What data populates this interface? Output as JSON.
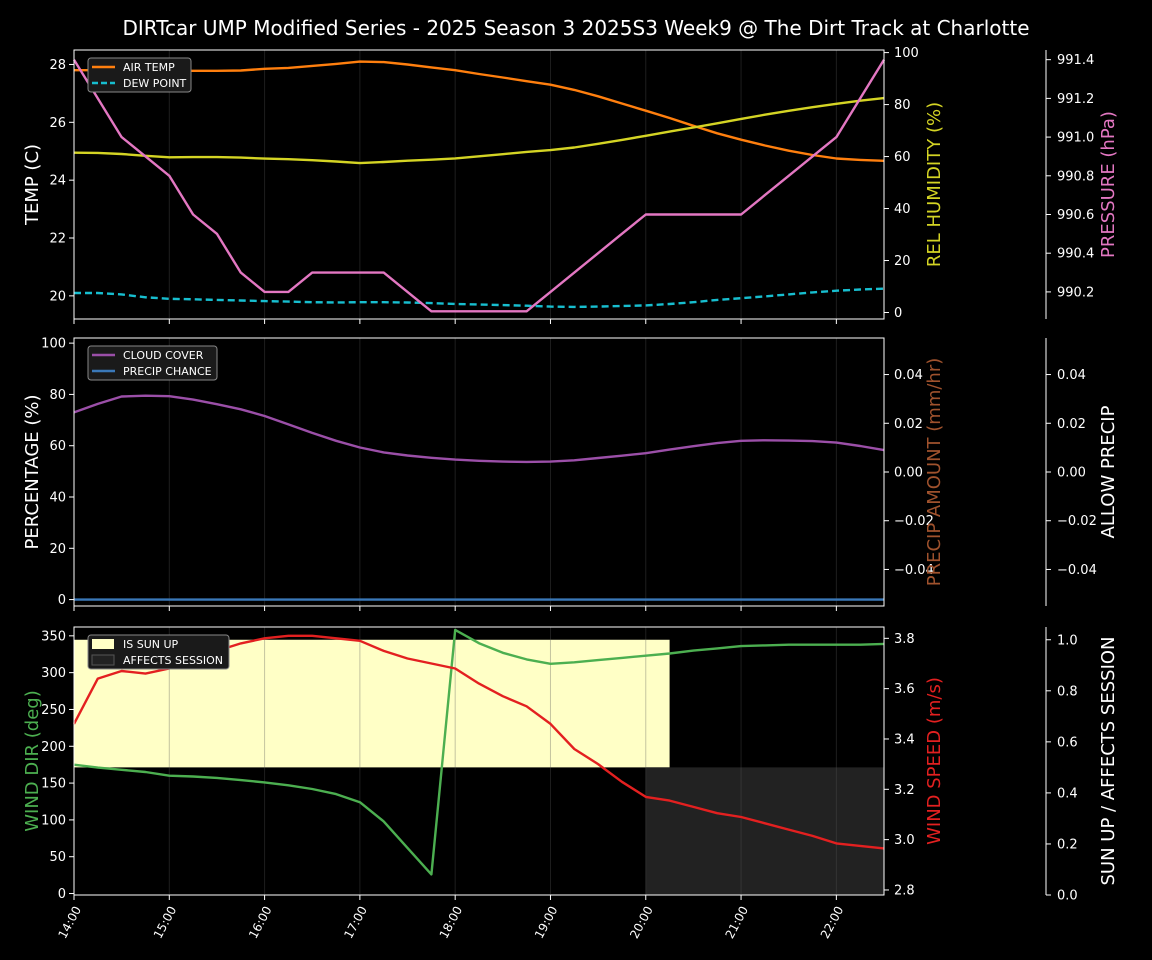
{
  "title": "DIRTcar UMP Modified Series - 2025 Season 3 2025S3 Week9 @ The Dirt Track at Charlotte",
  "colors": {
    "background": "#000000",
    "axis": "#ffffff",
    "air_temp": "#ff7f0e",
    "dew_point": "#17becf",
    "humidity": "#d4d424",
    "pressure": "#e377c2",
    "cloud": "#9b4fa8",
    "precip_chance": "#3a78b8",
    "precip_amount_label": "#a0522d",
    "wind_dir": "#4caf50",
    "wind_speed": "#e32020",
    "sun_up": "#ffffc6",
    "affects": "#222222"
  },
  "chart_data": [
    {
      "type": "line",
      "panel": "temperature",
      "title": "DIRTcar UMP Modified Series - 2025 Season 3 2025S3 Week9 @ The Dirt Track at Charlotte",
      "x": [
        14.0,
        14.25,
        14.5,
        14.75,
        15.0,
        15.25,
        15.5,
        15.75,
        16.0,
        16.25,
        16.5,
        16.75,
        17.0,
        17.25,
        17.5,
        17.75,
        18.0,
        18.25,
        18.5,
        18.75,
        19.0,
        19.25,
        19.5,
        19.75,
        20.0,
        20.25,
        20.5,
        20.75,
        21.0,
        21.25,
        21.5,
        21.75,
        22.0,
        22.25,
        22.5
      ],
      "xlim": [
        14.0,
        22.5
      ],
      "x_tick_labels": [
        "14:00",
        "15:00",
        "16:00",
        "17:00",
        "18:00",
        "19:00",
        "20:00",
        "21:00",
        "22:00"
      ],
      "left_axis": {
        "label": "TEMP (C)",
        "ylim": [
          19.2,
          28.5
        ],
        "ticks": [
          "20",
          "22",
          "24",
          "26",
          "28"
        ]
      },
      "right_axis_1": {
        "label": "REL HUMIDITY (%)",
        "ylim": [
          -2.5,
          101
        ],
        "ticks": [
          "0",
          "20",
          "40",
          "60",
          "80",
          "100"
        ]
      },
      "right_axis_2": {
        "label": "PRESSURE (hPa)",
        "ylim": [
          990.06,
          991.45
        ],
        "ticks": [
          "990.2",
          "990.4",
          "990.6",
          "990.8",
          "991.0",
          "991.2",
          "991.4"
        ]
      },
      "legend": {
        "position": "top-left",
        "entries": [
          "AIR TEMP",
          "DEW POINT"
        ]
      },
      "series": [
        {
          "name": "AIR TEMP",
          "axis": "left",
          "style": "solid",
          "values": [
            27.8,
            27.8,
            27.8,
            27.79,
            27.78,
            27.78,
            27.78,
            27.79,
            27.85,
            27.88,
            27.95,
            28.02,
            28.1,
            28.08,
            28.0,
            27.9,
            27.8,
            27.67,
            27.55,
            27.42,
            27.3,
            27.12,
            26.9,
            26.65,
            26.4,
            26.15,
            25.88,
            25.62,
            25.4,
            25.2,
            25.02,
            24.87,
            24.75,
            24.7,
            24.67
          ]
        },
        {
          "name": "DEW POINT",
          "axis": "left",
          "style": "dashed",
          "values": [
            20.1,
            20.1,
            20.05,
            19.95,
            19.9,
            19.88,
            19.86,
            19.84,
            19.82,
            19.8,
            19.78,
            19.77,
            19.78,
            19.78,
            19.77,
            19.75,
            19.72,
            19.7,
            19.68,
            19.66,
            19.63,
            19.62,
            19.63,
            19.65,
            19.67,
            19.72,
            19.78,
            19.86,
            19.92,
            19.98,
            20.05,
            20.12,
            20.18,
            20.22,
            20.25
          ]
        },
        {
          "name": "REL HUMIDITY",
          "axis": "right_1",
          "style": "solid",
          "values": [
            61.5,
            61.4,
            61.0,
            60.3,
            59.7,
            59.8,
            59.8,
            59.6,
            59.2,
            59.0,
            58.6,
            58.1,
            57.5,
            57.9,
            58.4,
            58.8,
            59.3,
            60.1,
            60.9,
            61.8,
            62.5,
            63.5,
            64.9,
            66.4,
            68.0,
            69.6,
            71.2,
            72.8,
            74.5,
            76.1,
            77.6,
            79.0,
            80.3,
            81.5,
            82.5
          ]
        },
        {
          "name": "PRESSURE",
          "axis": "right_2",
          "style": "solid",
          "values": [
            991.4,
            991.2,
            991.0,
            990.9,
            990.8,
            990.6,
            990.5,
            990.3,
            990.2,
            990.2,
            990.3,
            990.3,
            990.3,
            990.3,
            990.2,
            990.1,
            990.1,
            990.1,
            990.1,
            990.1,
            990.2,
            990.3,
            990.4,
            990.5,
            990.6,
            990.6,
            990.6,
            990.6,
            990.6,
            990.7,
            990.8,
            990.9,
            991.0,
            991.2,
            991.4
          ]
        }
      ]
    },
    {
      "type": "line",
      "panel": "cloud-precip",
      "x": [
        14.0,
        14.25,
        14.5,
        14.75,
        15.0,
        15.25,
        15.5,
        15.75,
        16.0,
        16.25,
        16.5,
        16.75,
        17.0,
        17.25,
        17.5,
        17.75,
        18.0,
        18.25,
        18.5,
        18.75,
        19.0,
        19.25,
        19.5,
        19.75,
        20.0,
        20.25,
        20.5,
        20.75,
        21.0,
        21.25,
        21.5,
        21.75,
        22.0,
        22.25,
        22.5
      ],
      "xlim": [
        14.0,
        22.5
      ],
      "left_axis": {
        "label": "PERCENTAGE (%)",
        "ylim": [
          -2.5,
          102
        ],
        "ticks": [
          "0",
          "20",
          "40",
          "60",
          "80",
          "100"
        ]
      },
      "right_axis_1": {
        "label": "PRECIP AMOUNT (mm/hr)",
        "ylim": [
          -0.055,
          0.055
        ],
        "ticks": [
          "−0.04",
          "−0.02",
          "0.00",
          "0.02",
          "0.04"
        ]
      },
      "right_axis_2": {
        "label": "ALLOW PRECIP",
        "ylim": [
          -0.055,
          0.055
        ],
        "ticks": [
          "−0.04",
          "−0.02",
          "0.00",
          "0.02",
          "0.04"
        ]
      },
      "legend": {
        "position": "top-left",
        "entries": [
          "CLOUD COVER",
          "PRECIP CHANCE"
        ]
      },
      "series": [
        {
          "name": "CLOUD COVER",
          "axis": "left",
          "values": [
            73,
            76.3,
            79.2,
            79.5,
            79.3,
            78,
            76.2,
            74.2,
            71.6,
            68.3,
            65,
            61.9,
            59.3,
            57.4,
            56.2,
            55.3,
            54.6,
            54.1,
            53.8,
            53.7,
            53.8,
            54.3,
            55.2,
            56.1,
            57.1,
            58.5,
            59.8,
            61,
            61.9,
            62.1,
            62,
            61.8,
            61.2,
            59.9,
            58.3
          ]
        },
        {
          "name": "PRECIP CHANCE",
          "axis": "left",
          "values": [
            0,
            0,
            0,
            0,
            0,
            0,
            0,
            0,
            0,
            0,
            0,
            0,
            0,
            0,
            0,
            0,
            0,
            0,
            0,
            0,
            0,
            0,
            0,
            0,
            0,
            0,
            0,
            0,
            0,
            0,
            0,
            0,
            0,
            0,
            0
          ]
        }
      ]
    },
    {
      "type": "line",
      "panel": "wind",
      "x": [
        14.0,
        14.25,
        14.5,
        14.75,
        15.0,
        15.25,
        15.5,
        15.75,
        16.0,
        16.25,
        16.5,
        16.75,
        17.0,
        17.25,
        17.5,
        17.75,
        18.0,
        18.25,
        18.5,
        18.75,
        19.0,
        19.25,
        19.5,
        19.75,
        20.0,
        20.25,
        20.5,
        20.75,
        21.0,
        21.25,
        21.5,
        21.75,
        22.0,
        22.25,
        22.5
      ],
      "xlim": [
        14.0,
        22.5
      ],
      "left_axis": {
        "label": "WIND DIR (deg)",
        "ylim": [
          -2,
          362
        ],
        "ticks": [
          "0",
          "50",
          "100",
          "150",
          "200",
          "250",
          "300",
          "350"
        ]
      },
      "right_axis_1": {
        "label": "WIND SPEED (m/s)",
        "ylim": [
          2.78,
          3.845
        ],
        "ticks": [
          "2.8",
          "3.0",
          "3.2",
          "3.4",
          "3.6",
          "3.8"
        ]
      },
      "right_axis_2": {
        "label": "SUN UP / AFFECTS SESSION",
        "ylim": [
          0,
          1.05
        ],
        "ticks": [
          "0.0",
          "0.2",
          "0.4",
          "0.6",
          "0.8",
          "1.0"
        ]
      },
      "legend": {
        "position": "top-left",
        "entries": [
          "IS SUN UP",
          "AFFECTS SESSION"
        ]
      },
      "shaded_regions": [
        {
          "name": "IS SUN UP",
          "x_start": 14.0,
          "x_end": 20.25,
          "y_start": 0.5,
          "y_end": 1.0
        },
        {
          "name": "AFFECTS SESSION",
          "x_start": 20.0,
          "x_end": 22.5,
          "y_start": 0.0,
          "y_end": 0.5
        }
      ],
      "series": [
        {
          "name": "WIND DIR",
          "axis": "left",
          "values": [
            175,
            171,
            168,
            165,
            160,
            159,
            157,
            154,
            151,
            147,
            142,
            135,
            124,
            98,
            62,
            26,
            358,
            340,
            327,
            318,
            312,
            314,
            317,
            320,
            323,
            326,
            330,
            333,
            336,
            337,
            338,
            338,
            338,
            338,
            339
          ]
        },
        {
          "name": "WIND SPEED",
          "axis": "right_1",
          "values": [
            3.46,
            3.64,
            3.67,
            3.66,
            3.68,
            3.72,
            3.75,
            3.78,
            3.8,
            3.81,
            3.81,
            3.8,
            3.79,
            3.75,
            3.72,
            3.7,
            3.68,
            3.62,
            3.57,
            3.53,
            3.46,
            3.36,
            3.3,
            3.23,
            3.17,
            3.155,
            3.13,
            3.105,
            3.09,
            3.065,
            3.04,
            3.015,
            2.985,
            2.975,
            2.965
          ]
        }
      ]
    }
  ]
}
